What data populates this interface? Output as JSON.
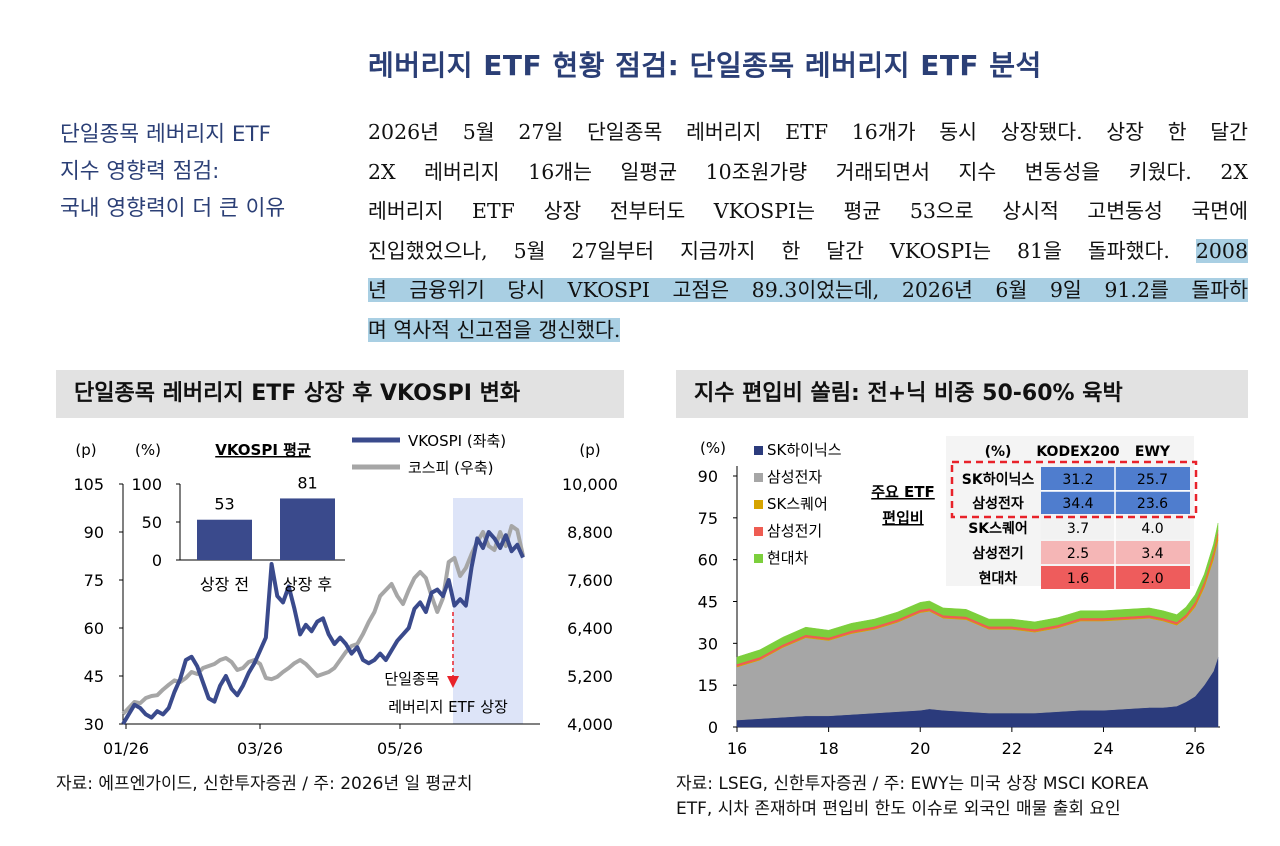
{
  "page_title": "레버리지 ETF 현황 점검: 단일종목 레버리지 ETF 분석",
  "sidebar_lines": [
    "단일종목 레버리지 ETF",
    "지수 영향력 점검:",
    "국내 영향력이 더 큰 이유"
  ],
  "body_lines": [
    {
      "text": "2026년 5월 27일 단일종목 레버리지 ETF 16개가 동시 상장됐다. 상장 한 달간"
    },
    {
      "text": "2X 레버리지 16개는 일평균 10조원가량 거래되면서 지수 변동성을 키웠다. 2X"
    },
    {
      "text": "레버리지 ETF 상장 전부터도 VKOSPI는 평균 53으로 상시적 고변동성 국면에"
    },
    {
      "text": "진입했었으나, 5월 27일부터 지금까지 한 달간 VKOSPI는 81을 돌파했다.",
      "highlight": "2008"
    },
    {
      "highlight": "년 금융위기 당시 VKOSPI 고점은 89.3이었는데, 2026년 6월 9일 91.2를 돌파하"
    },
    {
      "highlight": "며 역사적 신고점을 갱신했다."
    }
  ],
  "left_panel": {
    "heading": "단일종목 레버리지 ETF 상장 후 VKOSPI 변화",
    "footer": "자료: 에프엔가이드, 신한투자증권 / 주: 2026년 일 평균치"
  },
  "right_panel": {
    "heading": "지수 편입비 쏠림: 전+닉 비중 50-60% 육박",
    "footer_lines": [
      "자료: LSEG, 신한투자증권 / 주: EWY는 미국 상장 MSCI KOREA",
      "ETF, 시차 존재하며 편입비 한도 이슈로 외국인 매물 출회 요인"
    ]
  },
  "chart_data": [
    {
      "type": "line",
      "x_ticks": [
        "01/26",
        "03/26",
        "05/26"
      ],
      "y_left_unit": "(p)",
      "y_left_ticks": [
        30,
        45,
        60,
        75,
        90,
        105
      ],
      "y_left_lim": [
        30,
        105
      ],
      "y_right_unit": "(p)",
      "y_right_ticks": [
        "4,000",
        "5,200",
        "6,400",
        "7,600",
        "8,800",
        "10,000"
      ],
      "y_right_lim": [
        4000,
        10000
      ],
      "colors": {
        "vkospi": "#3a4a8c",
        "kospi": "#a6a6a6",
        "band": "#dde4f8",
        "marker": "#e8222a"
      },
      "series": [
        {
          "name": "VKOSPI (좌축)",
          "axis": "left",
          "values": [
            30,
            33,
            36,
            35,
            33,
            32,
            34,
            33,
            35,
            40,
            44,
            50,
            51,
            48,
            43,
            38,
            37,
            42,
            45,
            41,
            39,
            42,
            46,
            49,
            53,
            57,
            80,
            70,
            68,
            73,
            66,
            58,
            61,
            59,
            62,
            63,
            58,
            55,
            57,
            55,
            52,
            54,
            50,
            49,
            50,
            52,
            50,
            53,
            56,
            58,
            60,
            66,
            68,
            65,
            71,
            72,
            70,
            75,
            67,
            69,
            67,
            79,
            88,
            85,
            90,
            88,
            85,
            89,
            84,
            86,
            82
          ]
        },
        {
          "name": "코스피 (우축)",
          "axis": "right",
          "values": [
            4250,
            4400,
            4550,
            4520,
            4650,
            4700,
            4720,
            4860,
            4980,
            5090,
            5050,
            5150,
            5300,
            5250,
            5400,
            5450,
            5500,
            5600,
            5650,
            5550,
            5350,
            5400,
            5550,
            5600,
            5500,
            5150,
            5120,
            5180,
            5300,
            5400,
            5520,
            5600,
            5500,
            5350,
            5200,
            5250,
            5300,
            5400,
            5600,
            5800,
            5950,
            6000,
            6250,
            6550,
            6800,
            7200,
            7350,
            7500,
            7200,
            7000,
            7350,
            7650,
            7800,
            7650,
            7200,
            6800,
            7150,
            8050,
            8150,
            7700,
            7900,
            8250,
            8550,
            8800,
            8450,
            8350,
            8800,
            8450,
            8950,
            8850,
            8200
          ]
        }
      ],
      "inset": {
        "title": "VKOSPI 평균",
        "categories": [
          "상장 전",
          "상장 후"
        ],
        "values": [
          53,
          81
        ],
        "y_unit": "(%)",
        "y_ticks": [
          0,
          50,
          100
        ],
        "ylim": [
          0,
          100
        ]
      },
      "annotation": [
        "단일종목",
        "레버리지 ETF 상장"
      ]
    },
    {
      "type": "area",
      "y_unit": "(%)",
      "y_ticks": [
        0,
        15,
        30,
        45,
        60,
        75,
        90
      ],
      "ylim": [
        0,
        90
      ],
      "x_ticks": [
        "16",
        "18",
        "20",
        "22",
        "24",
        "26"
      ],
      "xlim": [
        16,
        26.5
      ],
      "x": [
        16.0,
        16.5,
        17.0,
        17.5,
        18.0,
        18.5,
        19.0,
        19.5,
        20.0,
        20.2,
        20.5,
        21.0,
        21.5,
        22.0,
        22.5,
        23.0,
        23.5,
        24.0,
        24.5,
        25.0,
        25.3,
        25.6,
        25.8,
        26.0,
        26.2,
        26.4,
        26.5
      ],
      "series": [
        {
          "name": "SK하이닉스",
          "color": "#2b3b7c",
          "values": [
            2.5,
            3,
            3.5,
            4,
            4,
            4.5,
            5,
            5.5,
            6,
            6.5,
            6,
            5.5,
            5,
            5,
            5,
            5.5,
            6,
            6,
            6.5,
            7,
            7,
            7.5,
            9,
            11,
            15,
            20,
            25
          ]
        },
        {
          "name": "삼성전자",
          "color": "#a6a6a6",
          "values": [
            19,
            21,
            25,
            28,
            27,
            29,
            30,
            32,
            35,
            35,
            33,
            33,
            30,
            30,
            29,
            30,
            32,
            32,
            32,
            32,
            31,
            29,
            30,
            32,
            35,
            40,
            42
          ]
        },
        {
          "name": "SK스퀘어",
          "color": "#d6a400",
          "values": [
            0.3,
            0.3,
            0.3,
            0.3,
            0.3,
            0.3,
            0.3,
            0.3,
            0.3,
            0.3,
            0.3,
            0.3,
            0.3,
            0.3,
            0.3,
            0.3,
            0.3,
            0.3,
            0.3,
            0.3,
            0.3,
            0.4,
            0.5,
            0.8,
            1,
            1.5,
            2
          ]
        },
        {
          "name": "삼성전기",
          "color": "#ee5c52",
          "values": [
            0.8,
            0.8,
            0.8,
            0.8,
            0.8,
            0.8,
            0.8,
            0.8,
            0.8,
            0.8,
            0.8,
            0.8,
            0.8,
            0.8,
            0.8,
            0.8,
            0.8,
            0.8,
            0.8,
            0.8,
            0.8,
            0.8,
            0.9,
            1,
            1.2,
            1.4,
            1.5
          ]
        },
        {
          "name": "현대차",
          "color": "#7ccf3c",
          "values": [
            2.5,
            2.6,
            2.6,
            2.7,
            2.6,
            2.6,
            2.6,
            2.6,
            2.6,
            2.6,
            2.6,
            2.6,
            2.6,
            2.6,
            2.6,
            2.6,
            2.6,
            2.6,
            2.6,
            2.6,
            2.6,
            2.6,
            2.6,
            2.6,
            2.6,
            2.6,
            2.6
          ]
        }
      ],
      "callout": [
        "주요 ETF",
        "편입비"
      ],
      "table": {
        "columns": [
          "(%)",
          "KODEX200",
          "EWY"
        ],
        "rows": [
          {
            "label": "SK하이닉스",
            "kodex": "31.2",
            "ewy": "25.7",
            "color": "#4f7dce"
          },
          {
            "label": "삼성전자",
            "kodex": "34.4",
            "ewy": "23.6",
            "color": "#4f7dce"
          },
          {
            "label": "SK스퀘어",
            "kodex": "3.7",
            "ewy": "4.0",
            "color": "#f2f2f2"
          },
          {
            "label": "삼성전기",
            "kodex": "2.5",
            "ewy": "3.4",
            "color": "#f5b6b6"
          },
          {
            "label": "현대차",
            "kodex": "1.6",
            "ewy": "2.0",
            "color": "#ee5c5c"
          }
        ]
      }
    }
  ]
}
